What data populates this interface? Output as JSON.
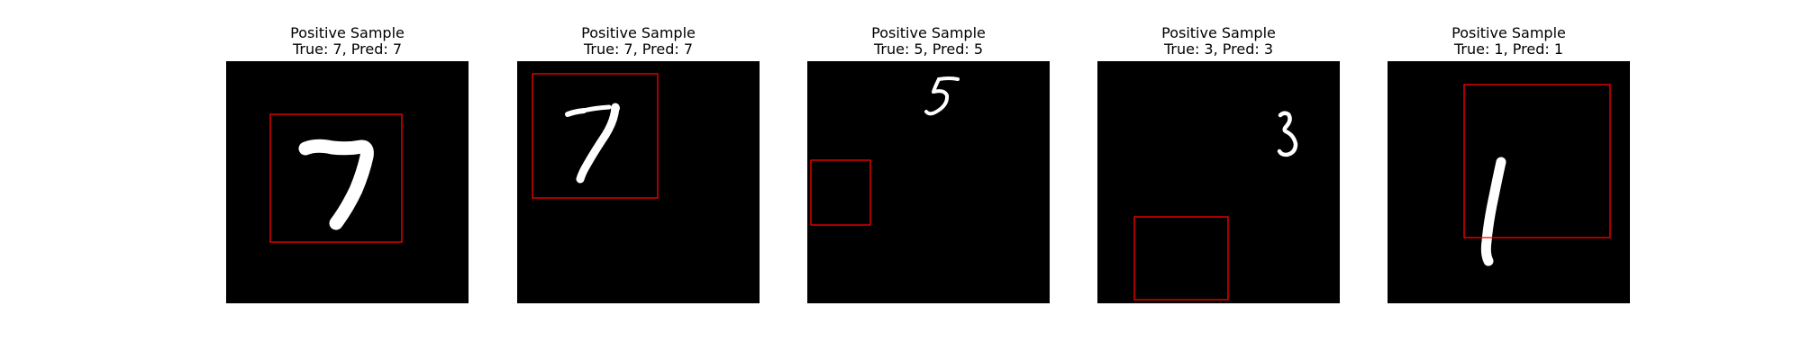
{
  "figure": {
    "panels": [
      {
        "heading": "Positive Sample",
        "caption": "True: 7, Pred: 7",
        "true_label": 7,
        "pred_label": 7,
        "digit_icon": "digit-7-glyph"
      },
      {
        "heading": "Positive Sample",
        "caption": "True: 7, Pred: 7",
        "true_label": 7,
        "pred_label": 7,
        "digit_icon": "digit-7-glyph"
      },
      {
        "heading": "Positive Sample",
        "caption": "True: 5, Pred: 5",
        "true_label": 5,
        "pred_label": 5,
        "digit_icon": "digit-5-glyph"
      },
      {
        "heading": "Positive Sample",
        "caption": "True: 3, Pred: 3",
        "true_label": 3,
        "pred_label": 3,
        "digit_icon": "digit-3-glyph"
      },
      {
        "heading": "Positive Sample",
        "caption": "True: 1, Pred: 1",
        "true_label": 1,
        "pred_label": 1,
        "digit_icon": "digit-1-glyph"
      }
    ],
    "colors": {
      "background": "#000000",
      "digit": "#ffffff",
      "box": "#ff0000"
    }
  }
}
